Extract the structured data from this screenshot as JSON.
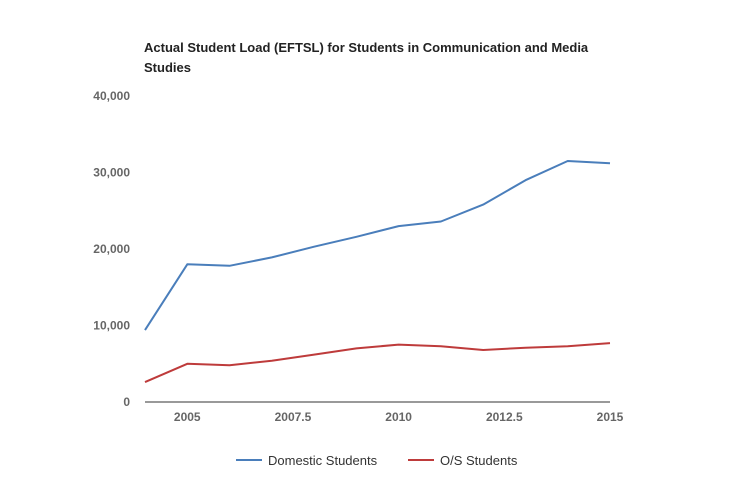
{
  "chart_data": {
    "type": "line",
    "title": "Actual Student Load (EFTSL) for Students in Communication and Media Studies",
    "xlabel": "",
    "ylabel": "",
    "xlim": [
      2004,
      2015
    ],
    "ylim": [
      0,
      40000
    ],
    "x_ticks": [
      "2005",
      "2007.5",
      "2010",
      "2012.5",
      "2015"
    ],
    "x_tick_values": [
      2005,
      2007.5,
      2010,
      2012.5,
      2015
    ],
    "y_ticks": [
      "0",
      "10,000",
      "20,000",
      "30,000",
      "40,000"
    ],
    "y_tick_values": [
      0,
      10000,
      20000,
      30000,
      40000
    ],
    "grid": false,
    "legend_position": "bottom",
    "x": [
      2004,
      2005,
      2006,
      2007,
      2008,
      2009,
      2010,
      2011,
      2012,
      2013,
      2014,
      2015
    ],
    "series": [
      {
        "name": "Domestic Students",
        "color": "#4a7ebb",
        "values": [
          9400,
          18000,
          17800,
          18900,
          20300,
          21600,
          23000,
          23600,
          25800,
          29000,
          31500,
          31200
        ]
      },
      {
        "name": "O/S Students",
        "color": "#be3b3b",
        "values": [
          2600,
          5000,
          4800,
          5400,
          6200,
          7000,
          7500,
          7300,
          6800,
          7100,
          7300,
          7700
        ]
      }
    ]
  }
}
